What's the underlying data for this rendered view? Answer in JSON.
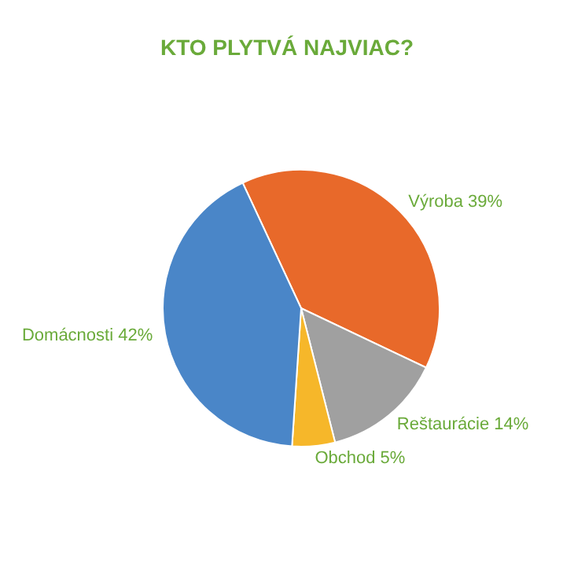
{
  "chart_data": {
    "type": "pie",
    "title": "KTO PLYTVÁ NAJVIAC?",
    "categories": [
      "Výroba",
      "Reštaurácie",
      "Obchod",
      "Domácnosti"
    ],
    "values": [
      39,
      14,
      5,
      42
    ],
    "colors": [
      "#e8692a",
      "#a0a0a0",
      "#f6b72a",
      "#4a86c8"
    ],
    "value_labels": [
      "39%",
      "14%",
      "5%",
      "42%"
    ],
    "legend": false
  }
}
